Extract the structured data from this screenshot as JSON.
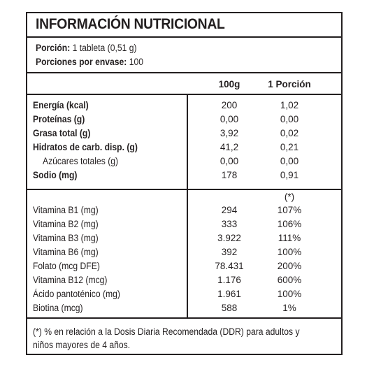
{
  "label": {
    "title": "INFORMACIÓN NUTRICIONAL",
    "serving": {
      "label": "Porción:",
      "value": "1 tableta (0,51 g)"
    },
    "servings_per_container": {
      "label": "Porciones por envase:",
      "value": "100"
    },
    "columns": {
      "per100": "100g",
      "perServing": "1 Porción"
    },
    "nutrients": [
      {
        "name": "Energía (kcal)",
        "per100": "200",
        "perServing": "1,02"
      },
      {
        "name": "Proteínas (g)",
        "per100": "0,00",
        "perServing": "0,00"
      },
      {
        "name": "Grasa total (g)",
        "per100": "3,92",
        "perServing": "0,02"
      },
      {
        "name": "Hidratos de carb. disp. (g)",
        "per100": "41,2",
        "perServing": "0,21"
      },
      {
        "name": "Azúcares totales (g)",
        "per100": "0,00",
        "perServing": "0,00"
      },
      {
        "name": "Sodio (mg)",
        "per100": "178",
        "perServing": "0,91"
      }
    ],
    "vitamin_mark": "(*)",
    "vitamins": [
      {
        "name": "Vitamina B1 (mg)",
        "per100": "294",
        "pct": "107%"
      },
      {
        "name": "Vitamina B2 (mg)",
        "per100": "333",
        "pct": "106%"
      },
      {
        "name": "Vitamina B3 (mg)",
        "per100": "3.922",
        "pct": "111%"
      },
      {
        "name": "Vitamina B6 (mg)",
        "per100": "392",
        "pct": "100%"
      },
      {
        "name": "Folato (mcg DFE)",
        "per100": "78.431",
        "pct": "200%"
      },
      {
        "name": "Vitamina B12 (mcg)",
        "per100": "1.176",
        "pct": "600%"
      },
      {
        "name": "Ácido pantoténico (mg)",
        "per100": "1.961",
        "pct": "100%"
      },
      {
        "name": "Biotina (mcg)",
        "per100": "588",
        "pct": "1%"
      }
    ],
    "footnote_line1": "(*) % en relación a la Dosis Diaria Recomendada (DDR) para adultos y",
    "footnote_line2": "niños mayores de 4 años."
  }
}
